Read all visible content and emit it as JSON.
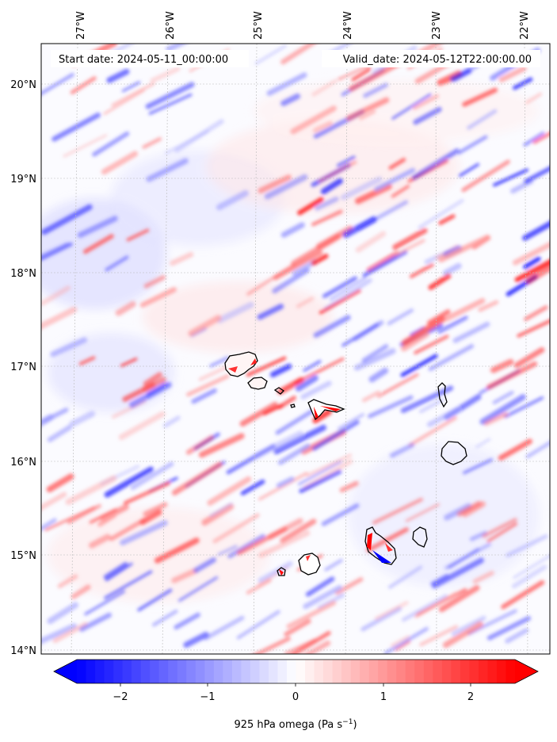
{
  "map": {
    "start_label": "Start date: 2024-05-11_00:00:00",
    "valid_label": "Valid_date: 2024-05-12T22:00:00.00",
    "lon_ticks": [
      "27°W",
      "26°W",
      "25°W",
      "24°W",
      "23°W",
      "22°W"
    ],
    "lat_ticks": [
      "20°N",
      "19°N",
      "18°N",
      "17°N",
      "16°N",
      "15°N",
      "14°N"
    ],
    "gridlines": true
  },
  "colorbar": {
    "label": "925 hPa omega (Pa s",
    "label_sup": "−1",
    "label_end": ")",
    "ticks": [
      "−2",
      "−1",
      "0",
      "1",
      "2"
    ],
    "range": [
      -2.6,
      2.6
    ],
    "colormap": "bwr",
    "extend": "both",
    "colors": {
      "negative": "#0000ff",
      "zero": "#ffffff",
      "positive": "#ff0000"
    }
  },
  "islands": [
    "Santo Antão",
    "São Vicente",
    "Santa Luzia",
    "São Nicolau",
    "Sal",
    "Boa Vista",
    "Maio",
    "Santiago",
    "Fogo",
    "Brava"
  ]
}
